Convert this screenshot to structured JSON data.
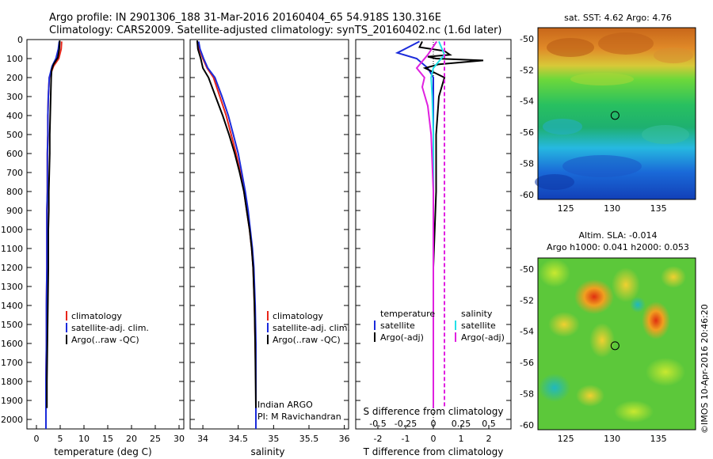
{
  "header": {
    "line1": "Argo profile: IN 2901306_188 31-Mar-2016 20160404_65 54.918S 130.316E",
    "line2": "Climatology: CARS2009. Satellite-adjusted climatology: synTS_20160402.nc (1.6d later)"
  },
  "colors": {
    "climatology": "#e8261a",
    "satellite": "#1b2bdb",
    "argo": "#000000",
    "satellite_salinity": "#22e0e8",
    "argo_salinity_adj": "#e020e0"
  },
  "depth_axis": {
    "ticks": [
      "0",
      "100",
      "200",
      "300",
      "400",
      "500",
      "600",
      "700",
      "800",
      "900",
      "1000",
      "1100",
      "1200",
      "1300",
      "1400",
      "1500",
      "1600",
      "1700",
      "1800",
      "1900",
      "2000"
    ],
    "ylim": [
      0,
      2050
    ]
  },
  "panels": {
    "temperature": {
      "xlabel": "temperature (deg C)",
      "xticks": [
        "0",
        "5",
        "10",
        "15",
        "20",
        "25",
        "30"
      ],
      "legend": [
        "climatology",
        "satellite-adj. clim.",
        "Argo(..raw -QC)"
      ]
    },
    "salinity": {
      "xlabel": "salinity",
      "xticks": [
        "34",
        "34.5",
        "35",
        "35.5",
        "36"
      ],
      "legend": [
        "climatology",
        "satellite-adj. clim.",
        "Argo(..raw -QC)"
      ],
      "annotation": [
        "Indian ARGO",
        "PI: M Ravichandran"
      ]
    },
    "difference": {
      "xlabel": "T difference from climatology",
      "xticks": [
        "-2",
        "-1",
        "0",
        "1",
        "2"
      ],
      "top_label": "S difference from climatology",
      "top_ticks": [
        "-0.5",
        "-0.25",
        "0",
        "0.25",
        "0.5"
      ],
      "legend_t_title": "temperature",
      "legend_t": [
        "satellite",
        "Argo(-adj)"
      ],
      "legend_s_title": "salinity",
      "legend_s": [
        "satellite",
        "Argo(-adj)"
      ]
    }
  },
  "maps": {
    "sst": {
      "title": "sat. SST: 4.62  Argo: 4.76",
      "yticks": [
        "-50",
        "-52",
        "-54",
        "-56",
        "-58",
        "-60"
      ],
      "xticks": [
        "125",
        "130",
        "135"
      ]
    },
    "sla": {
      "title1": "Altim. SLA: -0.014",
      "title2": "Argo h1000: 0.041 h2000: 0.053",
      "yticks": [
        "-50",
        "-52",
        "-54",
        "-56",
        "-58",
        "-60"
      ],
      "xticks": [
        "125",
        "130",
        "135"
      ]
    },
    "float_position": {
      "lon": 130.316,
      "lat": -54.918
    }
  },
  "credit": "©IMOS 10-Apr-2016 20:46:20",
  "chart_data": [
    {
      "type": "line",
      "xlabel": "temperature (deg C)",
      "ylabel": "",
      "xlim": [
        -2,
        31
      ],
      "ylim": [
        2050,
        0
      ],
      "series": [
        {
          "name": "climatology",
          "x": [
            5.3,
            5.2,
            4.7,
            3.6,
            2.7,
            2.5,
            2.4,
            2.4,
            2.3,
            2.3,
            2.3,
            2.2,
            2.2,
            2.2,
            2.2,
            2.1,
            2.1,
            2.1,
            2.0,
            2.0,
            2.0
          ],
          "y": [
            10,
            50,
            100,
            140,
            200,
            300,
            400,
            500,
            600,
            700,
            800,
            900,
            1000,
            1100,
            1200,
            1400,
            1500,
            1600,
            1800,
            1900,
            2050
          ]
        },
        {
          "name": "satellite-adj. clim.",
          "x": [
            4.8,
            4.6,
            4.1,
            3.3,
            2.7,
            2.5,
            2.4,
            2.4,
            2.3,
            2.3,
            2.3,
            2.2,
            2.2,
            2.2,
            2.2,
            2.1,
            2.1,
            2.1,
            2.0,
            2.0,
            2.0
          ],
          "y": [
            10,
            50,
            100,
            140,
            200,
            300,
            400,
            500,
            600,
            700,
            800,
            900,
            1000,
            1100,
            1200,
            1400,
            1500,
            1600,
            1800,
            1900,
            2050
          ]
        },
        {
          "name": "Argo(..raw -QC)",
          "x": [
            4.9,
            4.8,
            4.5,
            3.6,
            3.2,
            3.1,
            3.0,
            2.9,
            2.8,
            2.8,
            2.7,
            2.6,
            2.6,
            2.5,
            2.5,
            2.4,
            2.3,
            2.2,
            2.2
          ],
          "y": [
            5,
            50,
            95,
            130,
            160,
            200,
            300,
            400,
            500,
            600,
            700,
            800,
            900,
            1000,
            1200,
            1400,
            1600,
            1800,
            1940
          ]
        }
      ]
    },
    {
      "type": "line",
      "xlabel": "salinity",
      "ylabel": "",
      "xlim": [
        33.82,
        36.06
      ],
      "ylim": [
        2050,
        0
      ],
      "series": [
        {
          "name": "climatology",
          "x": [
            33.92,
            33.95,
            34.0,
            34.06,
            34.15,
            34.24,
            34.33,
            34.4,
            34.47,
            34.53,
            34.58,
            34.62,
            34.66,
            34.69,
            34.71,
            34.73,
            34.74,
            34.75,
            34.75,
            34.75
          ],
          "y": [
            10,
            50,
            100,
            150,
            200,
            300,
            400,
            500,
            600,
            700,
            800,
            900,
            1000,
            1100,
            1200,
            1400,
            1600,
            1800,
            1900,
            2050
          ]
        },
        {
          "name": "satellite-adj. clim.",
          "x": [
            33.94,
            33.96,
            34.01,
            34.07,
            34.17,
            34.27,
            34.36,
            34.43,
            34.5,
            34.55,
            34.6,
            34.64,
            34.67,
            34.7,
            34.72,
            34.74,
            34.75,
            34.75,
            34.75,
            34.75
          ],
          "y": [
            10,
            50,
            100,
            150,
            200,
            300,
            400,
            500,
            600,
            700,
            800,
            900,
            1000,
            1100,
            1200,
            1400,
            1600,
            1800,
            1900,
            2050
          ]
        },
        {
          "name": "Argo(..raw -QC)",
          "x": [
            33.92,
            33.93,
            33.97,
            34.0,
            34.08,
            34.18,
            34.28,
            34.37,
            34.45,
            34.52,
            34.58,
            34.62,
            34.66,
            34.69,
            34.71,
            34.73,
            34.74,
            34.75
          ],
          "y": [
            5,
            50,
            100,
            150,
            200,
            300,
            400,
            500,
            600,
            700,
            800,
            900,
            1000,
            1100,
            1200,
            1400,
            1600,
            1940
          ]
        }
      ]
    },
    {
      "type": "line",
      "xlabel": "T difference from climatology",
      "ylabel": "",
      "xlim": [
        -2.8,
        2.8
      ],
      "ylim": [
        2050,
        0
      ],
      "series": [
        {
          "name": "temperature satellite",
          "x": [
            -0.5,
            -1.3,
            -0.6,
            -0.2,
            0,
            0,
            0,
            0,
            0,
            0,
            0
          ],
          "y": [
            10,
            70,
            100,
            150,
            200,
            400,
            700,
            1000,
            1400,
            1800,
            1940
          ]
        },
        {
          "name": "temperature Argo(-adj)",
          "x": [
            -0.4,
            -0.5,
            0.4,
            0.6,
            -0.2,
            0.1,
            1.8,
            0.2,
            -0.3,
            0.4,
            0.2,
            0.1,
            0.1,
            0.0,
            0.0,
            0.0
          ],
          "y": [
            10,
            40,
            60,
            80,
            90,
            100,
            110,
            130,
            150,
            200,
            300,
            500,
            800,
            1200,
            1600,
            1940
          ]
        },
        {
          "name": "salinity satellite",
          "x": [
            0.05,
            0.1,
            0.0,
            -0.02,
            -0.01,
            0.0,
            0.0,
            0.0,
            0.0
          ],
          "y": [
            10,
            80,
            150,
            200,
            300,
            500,
            900,
            1400,
            1940
          ]
        },
        {
          "name": "salinity Argo(-adj)",
          "x": [
            0.03,
            -0.05,
            -0.15,
            -0.08,
            -0.1,
            -0.05,
            -0.02,
            0.0,
            0.0,
            0.0
          ],
          "y": [
            10,
            80,
            150,
            200,
            250,
            350,
            500,
            800,
            1400,
            1940
          ]
        },
        {
          "name": "salinity Argo(-adj) dashed",
          "x": [
            0.1,
            0.1,
            0.1,
            0.1,
            0.1,
            0.1
          ],
          "y": [
            10,
            100,
            400,
            800,
            1400,
            1940
          ]
        }
      ]
    },
    {
      "type": "heatmap",
      "title": "sat. SST: 4.62  Argo: 4.76",
      "xlim": [
        122,
        139
      ],
      "ylim": [
        -60.3,
        -49.3
      ],
      "xticks": [
        125,
        130,
        135
      ],
      "yticks": [
        -50,
        -52,
        -54,
        -56,
        -58,
        -60
      ]
    },
    {
      "type": "heatmap",
      "title": "Altim. SLA: -0.014 / Argo h1000: 0.041 h2000: 0.053",
      "xlim": [
        122,
        139
      ],
      "ylim": [
        -60.3,
        -49.3
      ],
      "xticks": [
        125,
        130,
        135
      ],
      "yticks": [
        -50,
        -52,
        -54,
        -56,
        -58,
        -60
      ]
    }
  ]
}
